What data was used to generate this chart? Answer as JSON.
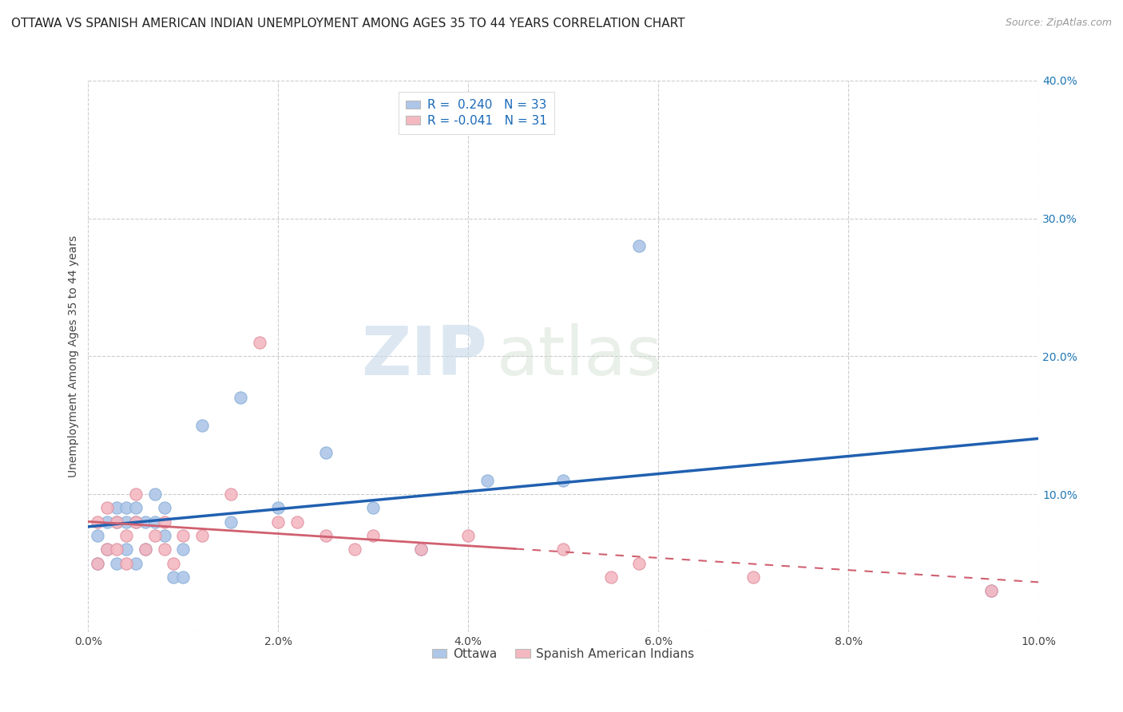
{
  "title": "OTTAWA VS SPANISH AMERICAN INDIAN UNEMPLOYMENT AMONG AGES 35 TO 44 YEARS CORRELATION CHART",
  "source": "Source: ZipAtlas.com",
  "ylabel": "Unemployment Among Ages 35 to 44 years",
  "xlim": [
    0.0,
    0.1
  ],
  "ylim": [
    0.0,
    0.4
  ],
  "xtick_vals": [
    0.0,
    0.02,
    0.04,
    0.06,
    0.08,
    0.1
  ],
  "ytick_vals": [
    0.0,
    0.1,
    0.2,
    0.3,
    0.4
  ],
  "legend_bottom_labels": [
    "Ottawa",
    "Spanish American Indians"
  ],
  "legend_top": {
    "blue_r": " 0.240",
    "blue_n": "33",
    "pink_r": "-0.041",
    "pink_n": "31"
  },
  "ottawa_color": "#aec6e8",
  "spanish_color": "#f4b8c1",
  "ottawa_line_color": "#2060b0",
  "spanish_line_color": "#d06070",
  "background_color": "#ffffff",
  "watermark_zip": "ZIP",
  "watermark_atlas": "atlas",
  "ottawa_x": [
    0.001,
    0.001,
    0.002,
    0.002,
    0.003,
    0.003,
    0.003,
    0.004,
    0.004,
    0.004,
    0.005,
    0.005,
    0.005,
    0.006,
    0.006,
    0.007,
    0.007,
    0.008,
    0.008,
    0.009,
    0.01,
    0.01,
    0.012,
    0.015,
    0.016,
    0.02,
    0.025,
    0.03,
    0.035,
    0.042,
    0.05,
    0.058,
    0.095
  ],
  "ottawa_y": [
    0.07,
    0.05,
    0.08,
    0.06,
    0.09,
    0.08,
    0.05,
    0.09,
    0.08,
    0.06,
    0.09,
    0.08,
    0.05,
    0.08,
    0.06,
    0.1,
    0.08,
    0.09,
    0.07,
    0.04,
    0.06,
    0.04,
    0.15,
    0.08,
    0.17,
    0.09,
    0.13,
    0.09,
    0.06,
    0.11,
    0.11,
    0.28,
    0.03
  ],
  "spanish_x": [
    0.001,
    0.001,
    0.002,
    0.002,
    0.003,
    0.003,
    0.004,
    0.004,
    0.005,
    0.005,
    0.006,
    0.007,
    0.008,
    0.008,
    0.009,
    0.01,
    0.012,
    0.015,
    0.018,
    0.02,
    0.022,
    0.025,
    0.028,
    0.03,
    0.035,
    0.04,
    0.05,
    0.055,
    0.058,
    0.07,
    0.095
  ],
  "spanish_y": [
    0.08,
    0.05,
    0.09,
    0.06,
    0.08,
    0.06,
    0.07,
    0.05,
    0.1,
    0.08,
    0.06,
    0.07,
    0.08,
    0.06,
    0.05,
    0.07,
    0.07,
    0.1,
    0.21,
    0.08,
    0.08,
    0.07,
    0.06,
    0.07,
    0.06,
    0.07,
    0.06,
    0.04,
    0.05,
    0.04,
    0.03
  ],
  "grid_color": "#cccccc",
  "title_fontsize": 11,
  "axis_label_fontsize": 10,
  "tick_fontsize": 10,
  "marker_size": 120
}
